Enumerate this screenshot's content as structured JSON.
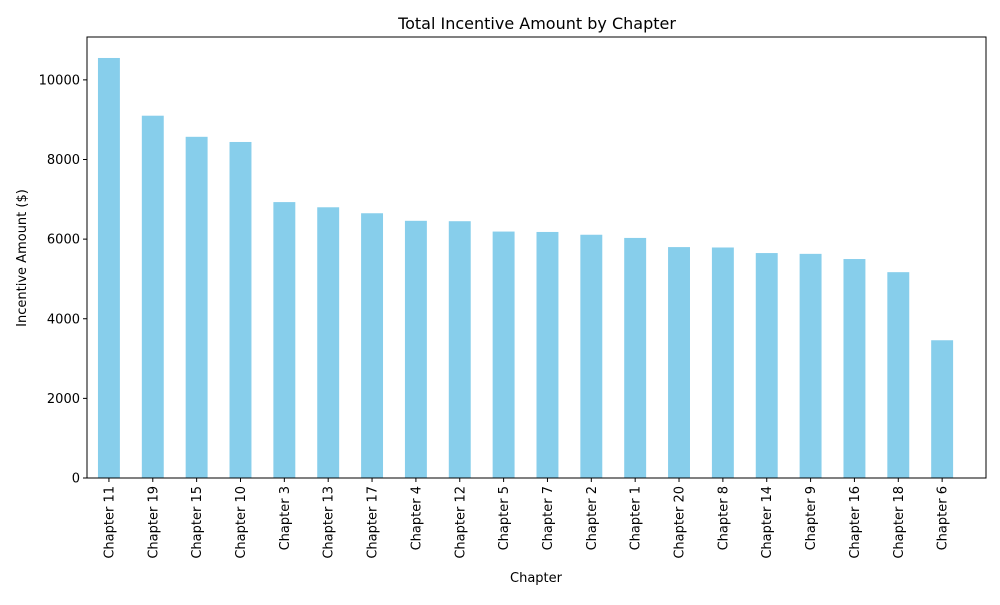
{
  "chart_data": {
    "type": "bar",
    "title": "Total Incentive Amount by Chapter",
    "xlabel": "Chapter",
    "ylabel": "Incentive Amount ($)",
    "categories": [
      "Chapter 11",
      "Chapter 19",
      "Chapter 15",
      "Chapter 10",
      "Chapter 3",
      "Chapter 13",
      "Chapter 17",
      "Chapter 4",
      "Chapter 12",
      "Chapter 5",
      "Chapter 7",
      "Chapter 2",
      "Chapter 1",
      "Chapter 20",
      "Chapter 8",
      "Chapter 14",
      "Chapter 9",
      "Chapter 16",
      "Chapter 18",
      "Chapter 6"
    ],
    "values": [
      10550,
      9100,
      8570,
      8440,
      6930,
      6800,
      6650,
      6460,
      6450,
      6190,
      6180,
      6110,
      6030,
      5800,
      5790,
      5650,
      5630,
      5500,
      5170,
      3460
    ],
    "ylim": [
      0,
      11077
    ],
    "yticks": [
      "0",
      "2000",
      "4000",
      "6000",
      "8000",
      "10000"
    ],
    "grid": false,
    "legend": "none",
    "bar_color": "#87ceeb"
  }
}
